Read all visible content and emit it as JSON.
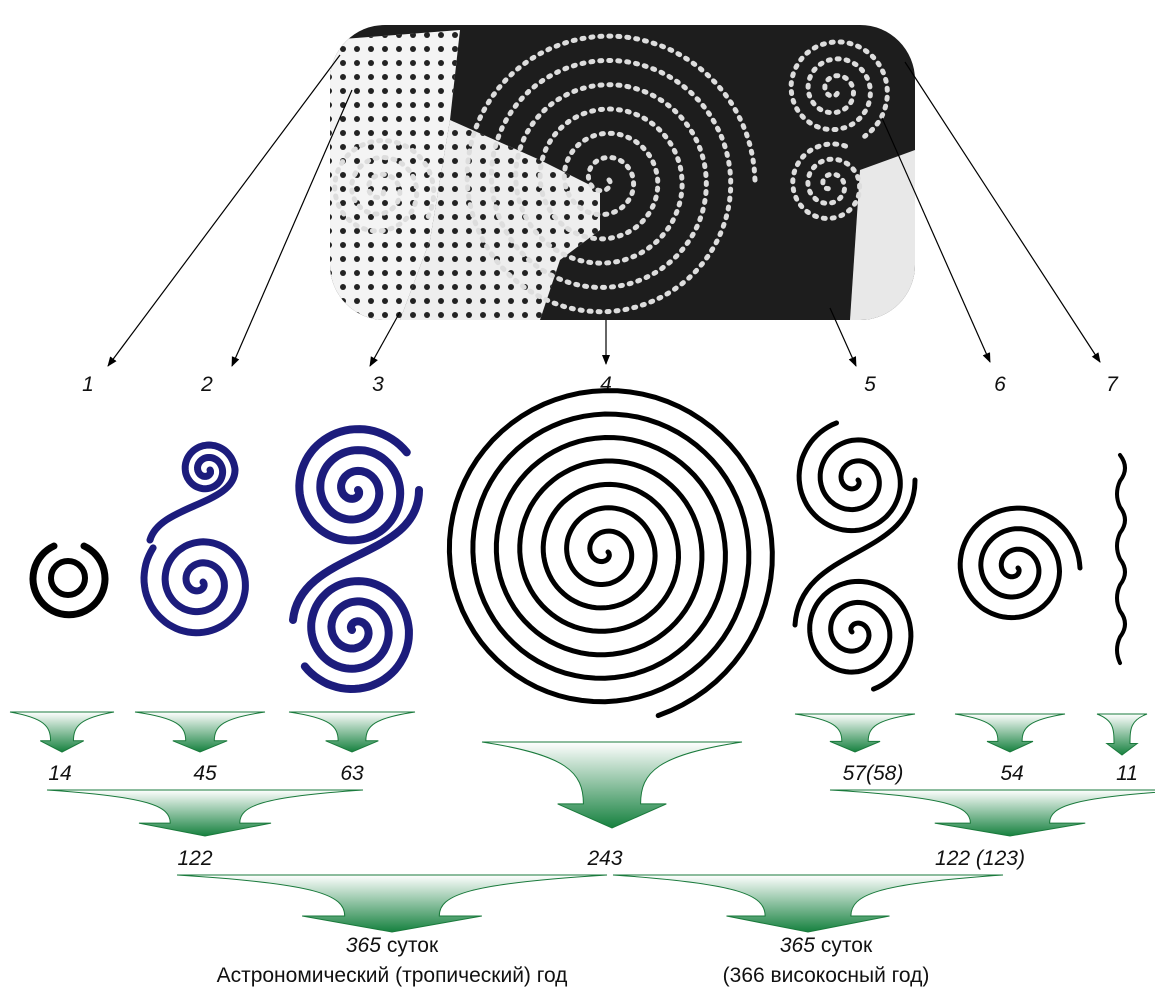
{
  "labels": [
    "1",
    "2",
    "3",
    "4",
    "5",
    "6",
    "7"
  ],
  "counts": [
    "14",
    "45",
    "63",
    "57(58)",
    "54",
    "11"
  ],
  "sums": [
    "122",
    "243",
    "122 (123)"
  ],
  "totals": [
    {
      "number": "365",
      "unit": "суток",
      "caption": "Астрономический (тропический) год"
    },
    {
      "number": "365",
      "unit": "суток",
      "caption": "(366 високосный год)"
    }
  ]
}
